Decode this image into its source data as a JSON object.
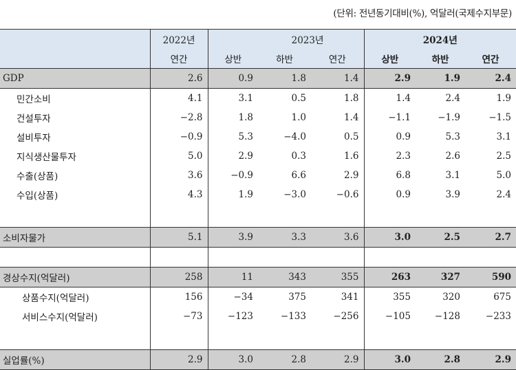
{
  "unit_note": "(단위: 전년동기대비(%), 억달러(국제수지부문)",
  "header": {
    "y2022": "2022년",
    "y2023": "2023년",
    "y2024": "2024년",
    "annual": "연간",
    "h1": "상반",
    "h2": "하반"
  },
  "rows": [
    {
      "label": "GDP",
      "values": [
        "2.6",
        "0.9",
        "1.8",
        "1.4",
        "2.9",
        "1.9",
        "2.4"
      ]
    },
    {
      "label": "민간소비",
      "values": [
        "4.1",
        "3.1",
        "0.5",
        "1.8",
        "1.4",
        "2.4",
        "1.9"
      ]
    },
    {
      "label": "건설투자",
      "values": [
        "−2.8",
        "1.8",
        "1.0",
        "1.4",
        "−1.1",
        "−1.9",
        "−1.5"
      ]
    },
    {
      "label": "설비투자",
      "values": [
        "−0.9",
        "5.3",
        "−4.0",
        "0.5",
        "0.9",
        "5.3",
        "3.1"
      ]
    },
    {
      "label": "지식생산물투자",
      "values": [
        "5.0",
        "2.9",
        "0.3",
        "1.6",
        "2.3",
        "2.6",
        "2.5"
      ]
    },
    {
      "label": "수출(상품)",
      "values": [
        "3.6",
        "−0.9",
        "6.6",
        "2.9",
        "6.8",
        "3.1",
        "5.0"
      ]
    },
    {
      "label": "수입(상품)",
      "values": [
        "4.3",
        "1.9",
        "−3.0",
        "−0.6",
        "0.9",
        "3.9",
        "2.4"
      ]
    },
    {
      "label": "소비자물가",
      "values": [
        "5.1",
        "3.9",
        "3.3",
        "3.6",
        "3.0",
        "2.5",
        "2.7"
      ]
    },
    {
      "label": "경상수지(억달러)",
      "values": [
        "258",
        "11",
        "343",
        "355",
        "263",
        "327",
        "590"
      ]
    },
    {
      "label": "상품수지(억달러)",
      "values": [
        "156",
        "−34",
        "375",
        "341",
        "355",
        "320",
        "675"
      ]
    },
    {
      "label": "서비스수지(억달러)",
      "values": [
        "−73",
        "−123",
        "−133",
        "−256",
        "−105",
        "−128",
        "−233"
      ]
    },
    {
      "label": "실업률(%)",
      "values": [
        "2.9",
        "3.0",
        "2.8",
        "2.9",
        "3.0",
        "2.8",
        "2.9"
      ]
    }
  ]
}
